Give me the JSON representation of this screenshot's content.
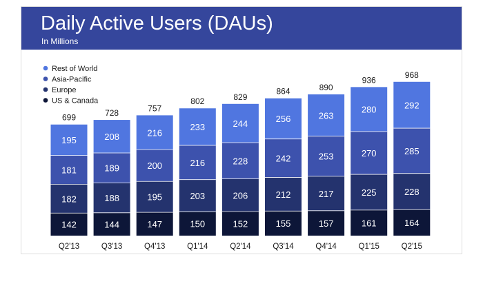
{
  "header": {
    "title": "Daily Active Users (DAUs)",
    "subtitle": "In Millions"
  },
  "colors": {
    "header_bg": "#35469c",
    "Rest of World": "#5076e0",
    "Asia-Pacific": "#3d52ad",
    "Europe": "#24336e",
    "US & Canada": "#0d1638",
    "segment_text": "#ffffff",
    "total_text": "#1a1a1a"
  },
  "chart_data": {
    "type": "bar",
    "stacked": true,
    "title": "Daily Active Users (DAUs)",
    "subtitle": "In Millions",
    "categories": [
      "Q2'13",
      "Q3'13",
      "Q4'13",
      "Q1'14",
      "Q2'14",
      "Q3'14",
      "Q4'14",
      "Q1'15",
      "Q2'15"
    ],
    "series": [
      {
        "name": "US & Canada",
        "values": [
          142,
          144,
          147,
          150,
          152,
          155,
          157,
          161,
          164
        ]
      },
      {
        "name": "Europe",
        "values": [
          182,
          188,
          195,
          203,
          206,
          212,
          217,
          225,
          228
        ]
      },
      {
        "name": "Asia-Pacific",
        "values": [
          181,
          189,
          200,
          216,
          228,
          242,
          253,
          270,
          285
        ]
      },
      {
        "name": "Rest of World",
        "values": [
          195,
          208,
          216,
          233,
          244,
          256,
          263,
          280,
          292
        ]
      }
    ],
    "totals": [
      699,
      728,
      757,
      802,
      829,
      864,
      890,
      936,
      968
    ],
    "legend": {
      "placement": "top-left",
      "order": [
        "Rest of World",
        "Asia-Pacific",
        "Europe",
        "US & Canada"
      ]
    },
    "grid": false,
    "ylim": [
      0,
      968
    ]
  }
}
